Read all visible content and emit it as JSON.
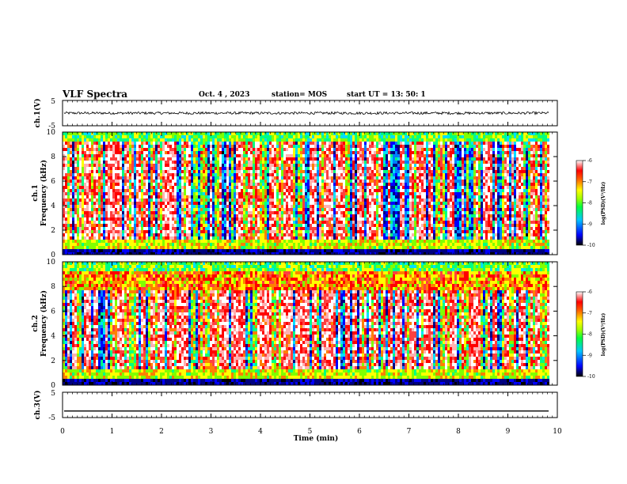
{
  "header": {
    "title": "VLF Spectra",
    "date": "Oct. 4 , 2023",
    "station": "station= MOS",
    "start": "start UT =  13: 50: 1"
  },
  "panels": {
    "ch1_wave": {
      "ylabel": "ch.1(V)",
      "ticks": [
        "5",
        "-5"
      ]
    },
    "ch1_spec": {
      "ylabel_top": "ch.1",
      "ylabel_bottom": "Frequency (kHz)"
    },
    "ch2_spec": {
      "ylabel_top": "ch.2",
      "ylabel_bottom": "Frequency (kHz)"
    },
    "ch3_wave": {
      "ylabel": "ch.3(V)",
      "ticks": [
        "5",
        "-5"
      ]
    }
  },
  "colorbars": [
    {
      "label": "log(PSD)(V²/Hz)",
      "ticks": [
        "-6",
        "-7",
        "-8",
        "-9",
        "-10"
      ]
    },
    {
      "label": "log(PSD)(V²/Hz)",
      "ticks": [
        "-6",
        "-7",
        "-8",
        "-9",
        "-10"
      ]
    }
  ],
  "chart_data": [
    {
      "type": "line",
      "name": "ch.1 waveform",
      "ylabel": "ch.1(V)",
      "ylim": [
        -5,
        5
      ],
      "xlim": [
        0,
        10
      ],
      "level": 0,
      "noise_amplitude": 0.5,
      "x_end": 9.83
    },
    {
      "type": "heatmap",
      "ylabel": "ch.1 Frequency (kHz)",
      "ylim": [
        0,
        10
      ],
      "xlim": [
        0,
        10
      ],
      "x_end": 9.83,
      "yticks": [
        "0",
        "2",
        "4",
        "6",
        "8",
        "10"
      ],
      "color_range": [
        -10,
        -6
      ]
    },
    {
      "type": "heatmap",
      "ylabel": "ch.2 Frequency (kHz)",
      "ylim": [
        0,
        10
      ],
      "xlim": [
        0,
        10
      ],
      "x_end": 9.83,
      "yticks": [
        "0",
        "2",
        "4",
        "6",
        "8",
        "10"
      ],
      "color_range": [
        -10,
        -6
      ]
    },
    {
      "type": "line",
      "name": "ch.3 waveform",
      "ylabel": "ch.3(V)",
      "ylim": [
        -5,
        5
      ],
      "xlim": [
        0,
        10
      ],
      "level": -2.4,
      "noise_amplitude": 0,
      "x_end": 9.83
    }
  ],
  "xaxis": {
    "label": "Time (min)",
    "ticks": [
      "0",
      "1",
      "2",
      "3",
      "4",
      "5",
      "6",
      "7",
      "8",
      "9",
      "10"
    ]
  },
  "colors": {
    "spectrum_scale": [
      "#000080",
      "#0000ff",
      "#00c0ff",
      "#00ff80",
      "#80ff00",
      "#ffff00",
      "#ff8000",
      "#ff0000",
      "#ff8080",
      "#ffffff"
    ]
  }
}
